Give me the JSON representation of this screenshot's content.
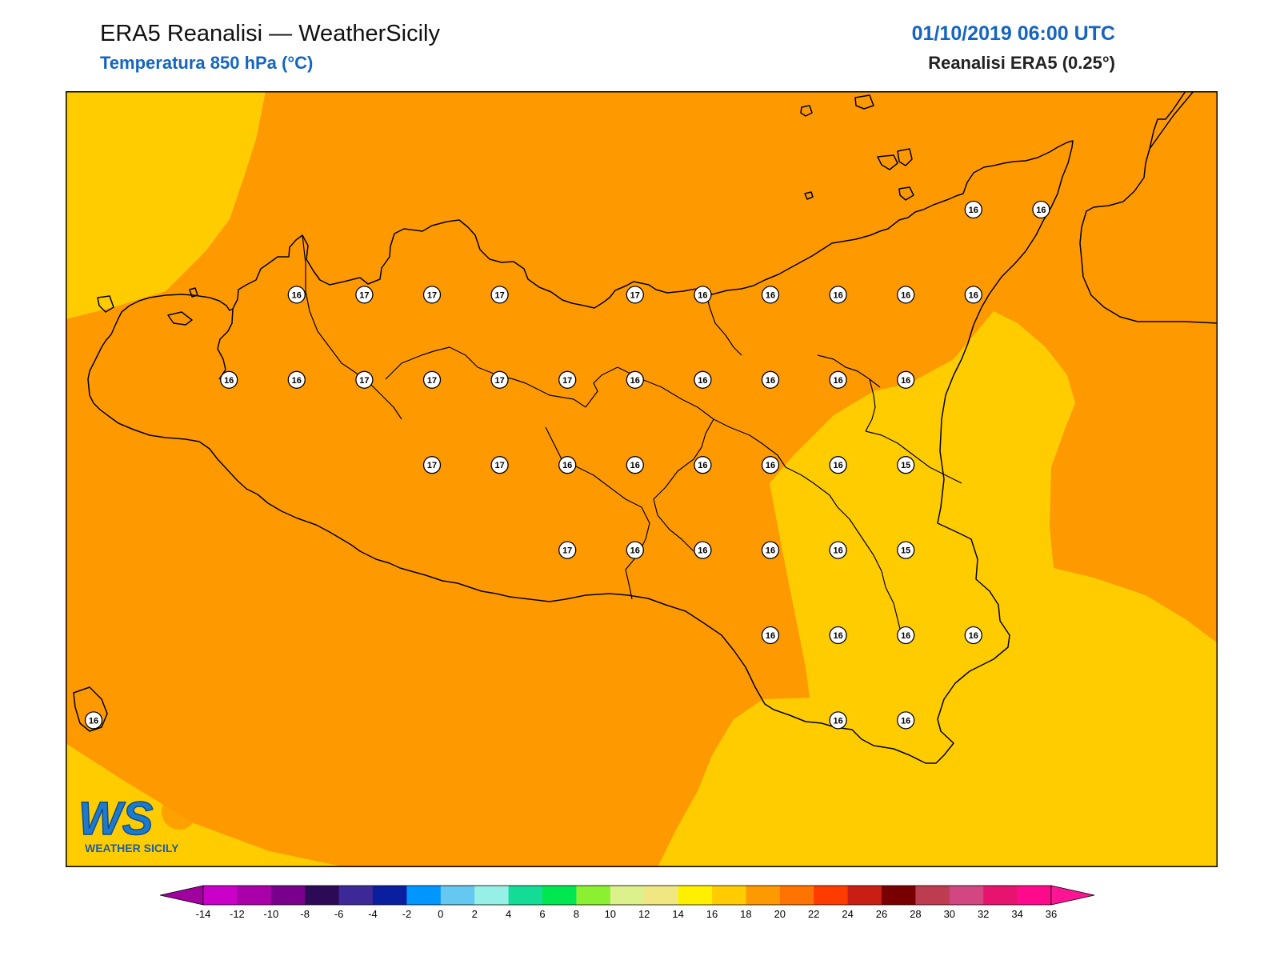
{
  "header": {
    "title": "ERA5 Reanalisi — WeatherSicily",
    "subtitle": "Temperatura 850 hPa (°C)",
    "datetime": "01/10/2019 06:00 UTC",
    "source": "Reanalisi ERA5 (0.25°)"
  },
  "colors": {
    "band_14_16": "#ffcc00",
    "band_16_18": "#ff9900",
    "coast": "#000000"
  },
  "points": [
    {
      "row": 0,
      "col": 13,
      "value": "16"
    },
    {
      "row": 0,
      "col": 14,
      "value": "16"
    },
    {
      "row": 1,
      "col": 3,
      "value": "16"
    },
    {
      "row": 1,
      "col": 4,
      "value": "17"
    },
    {
      "row": 1,
      "col": 5,
      "value": "17"
    },
    {
      "row": 1,
      "col": 6,
      "value": "17"
    },
    {
      "row": 1,
      "col": 8,
      "value": "17"
    },
    {
      "row": 1,
      "col": 9,
      "value": "16"
    },
    {
      "row": 1,
      "col": 10,
      "value": "16"
    },
    {
      "row": 1,
      "col": 11,
      "value": "16"
    },
    {
      "row": 1,
      "col": 12,
      "value": "16"
    },
    {
      "row": 1,
      "col": 13,
      "value": "16"
    },
    {
      "row": 2,
      "col": 2,
      "value": "16"
    },
    {
      "row": 2,
      "col": 3,
      "value": "16"
    },
    {
      "row": 2,
      "col": 4,
      "value": "17"
    },
    {
      "row": 2,
      "col": 5,
      "value": "17"
    },
    {
      "row": 2,
      "col": 6,
      "value": "17"
    },
    {
      "row": 2,
      "col": 7,
      "value": "17"
    },
    {
      "row": 2,
      "col": 8,
      "value": "16"
    },
    {
      "row": 2,
      "col": 9,
      "value": "16"
    },
    {
      "row": 2,
      "col": 10,
      "value": "16"
    },
    {
      "row": 2,
      "col": 11,
      "value": "16"
    },
    {
      "row": 2,
      "col": 12,
      "value": "16"
    },
    {
      "row": 3,
      "col": 5,
      "value": "17"
    },
    {
      "row": 3,
      "col": 6,
      "value": "17"
    },
    {
      "row": 3,
      "col": 7,
      "value": "16"
    },
    {
      "row": 3,
      "col": 8,
      "value": "16"
    },
    {
      "row": 3,
      "col": 9,
      "value": "16"
    },
    {
      "row": 3,
      "col": 10,
      "value": "16"
    },
    {
      "row": 3,
      "col": 11,
      "value": "16"
    },
    {
      "row": 3,
      "col": 12,
      "value": "15"
    },
    {
      "row": 4,
      "col": 7,
      "value": "17"
    },
    {
      "row": 4,
      "col": 8,
      "value": "16"
    },
    {
      "row": 4,
      "col": 9,
      "value": "16"
    },
    {
      "row": 4,
      "col": 10,
      "value": "16"
    },
    {
      "row": 4,
      "col": 11,
      "value": "16"
    },
    {
      "row": 4,
      "col": 12,
      "value": "15"
    },
    {
      "row": 5,
      "col": 10,
      "value": "16"
    },
    {
      "row": 5,
      "col": 11,
      "value": "16"
    },
    {
      "row": 5,
      "col": 12,
      "value": "16"
    },
    {
      "row": 5,
      "col": 13,
      "value": "16"
    },
    {
      "row": 6,
      "col": 0,
      "value": "16"
    },
    {
      "row": 6,
      "col": 11,
      "value": "16"
    },
    {
      "row": 6,
      "col": 12,
      "value": "16"
    }
  ],
  "legend": {
    "ticks": [
      "-14",
      "-12",
      "-10",
      "-8",
      "-6",
      "-4",
      "-2",
      "0",
      "2",
      "4",
      "6",
      "8",
      "10",
      "12",
      "14",
      "16",
      "18",
      "20",
      "22",
      "24",
      "26",
      "28",
      "30",
      "32",
      "34",
      "36"
    ],
    "colors": [
      "#c800c8",
      "#aa00aa",
      "#78008c",
      "#2d0a55",
      "#3c2896",
      "#0a1ea0",
      "#0096ff",
      "#64c8f0",
      "#96f0e6",
      "#14dc96",
      "#00e650",
      "#8cf032",
      "#dcf08c",
      "#f0e682",
      "#fff000",
      "#ffcc00",
      "#ff9900",
      "#ff7300",
      "#ff3c00",
      "#c81e14",
      "#780000",
      "#be3c50",
      "#d24682",
      "#e6146e",
      "#ff0a8c"
    ],
    "low_color": "#a000a0",
    "high_color": "#ff1493"
  },
  "logo": {
    "text": "WS",
    "subtext": "WEATHER SICILY"
  }
}
